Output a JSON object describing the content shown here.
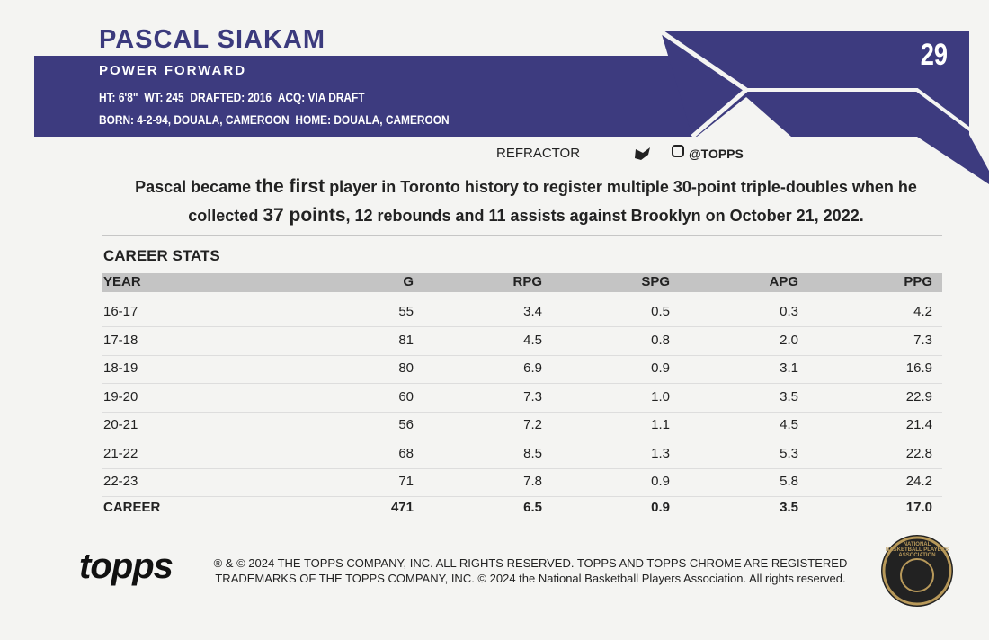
{
  "header": {
    "name": "PASCAL SIAKAM",
    "position": "POWER FORWARD",
    "number": "29",
    "info_line_1": [
      "HT: 6'8\"",
      "WT: 245",
      "DRAFTED: 2016",
      "ACQ: VIA DRAFT"
    ],
    "info_line_2": [
      "BORN: 4-2-94, DOUALA, CAMEROON",
      "HOME: DOUALA, CAMEROON"
    ]
  },
  "social": {
    "variant": "REFRACTOR",
    "handle": "@TOPPS"
  },
  "blurb": {
    "parts": [
      "Pascal became ",
      "the first",
      " player in Toronto history to register multiple 30-point triple-doubles when he collected ",
      "37 points",
      ", 12 rebounds and 11 assists against Brooklyn on October 21, 2022."
    ]
  },
  "table": {
    "title": "CAREER STATS",
    "columns": [
      "YEAR",
      "G",
      "RPG",
      "SPG",
      "APG",
      "PPG"
    ],
    "rows": [
      [
        "16-17",
        "55",
        "3.4",
        "0.5",
        "0.3",
        "4.2"
      ],
      [
        "17-18",
        "81",
        "4.5",
        "0.8",
        "2.0",
        "7.3"
      ],
      [
        "18-19",
        "80",
        "6.9",
        "0.9",
        "3.1",
        "16.9"
      ],
      [
        "19-20",
        "60",
        "7.3",
        "1.0",
        "3.5",
        "22.9"
      ],
      [
        "20-21",
        "56",
        "7.2",
        "1.1",
        "4.5",
        "21.4"
      ],
      [
        "21-22",
        "68",
        "8.5",
        "1.3",
        "5.3",
        "22.8"
      ],
      [
        "22-23",
        "71",
        "7.8",
        "0.9",
        "5.8",
        "24.2"
      ]
    ],
    "totals": [
      "CAREER",
      "471",
      "6.5",
      "0.9",
      "3.5",
      "17.0"
    ]
  },
  "footer": {
    "logo": "topps",
    "legal": [
      "® & © 2024 THE TOPPS COMPANY, INC. ALL RIGHTS RESERVED. TOPPS AND TOPPS CHROME ARE REGISTERED",
      "TRADEMARKS OF THE TOPPS COMPANY, INC. © 2024 the National Basketball Players Association. All rights reserved."
    ],
    "badge": "NATIONAL BASKETBALL PLAYERS ASSOCIATION"
  }
}
